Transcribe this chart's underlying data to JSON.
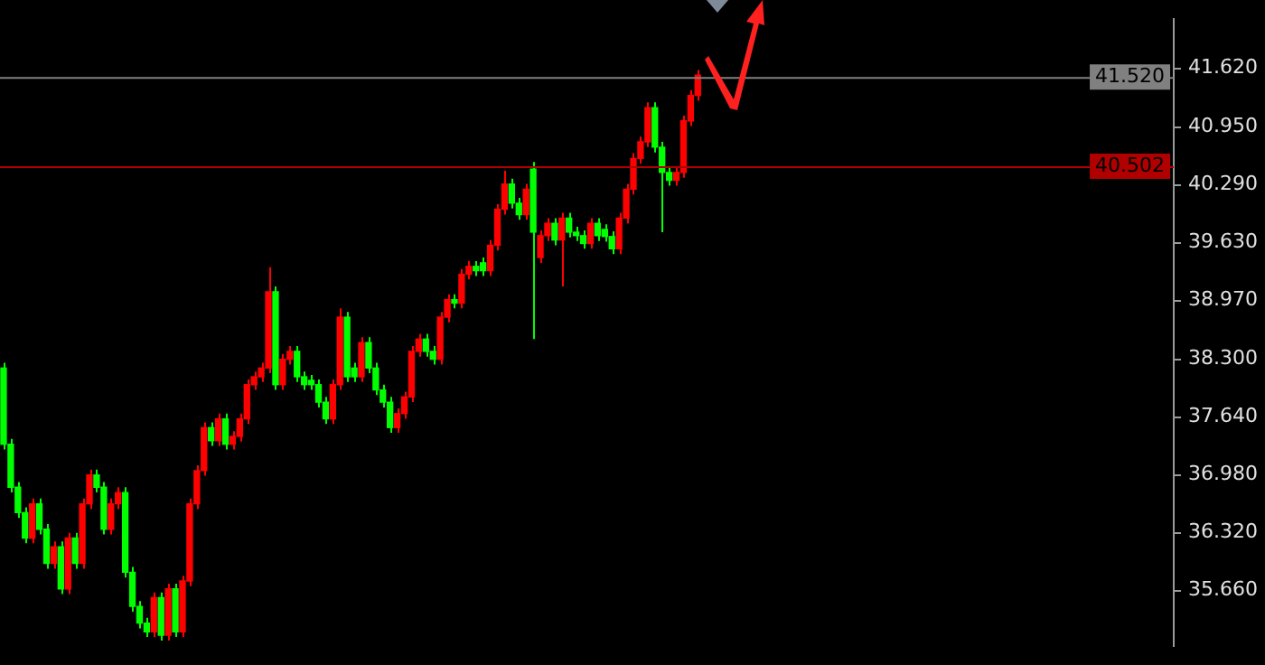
{
  "chart_data": {
    "type": "candlestick",
    "categories": [
      null,
      null,
      null,
      null,
      null,
      null,
      null,
      null,
      null,
      null,
      null,
      null,
      null,
      null,
      null,
      null,
      null,
      null,
      null,
      null,
      null,
      null,
      null,
      null,
      null,
      null,
      null,
      null,
      null,
      null,
      null,
      null,
      null,
      null,
      null,
      null,
      null,
      null,
      null,
      null,
      null,
      null,
      null,
      null,
      null,
      null,
      null,
      null,
      null,
      null,
      null,
      null,
      null,
      null,
      null,
      null,
      null,
      null,
      null,
      null,
      null,
      null,
      null,
      null,
      null,
      null,
      null,
      null,
      null,
      null,
      null,
      null,
      null,
      null,
      null,
      null,
      null,
      null,
      null,
      null,
      null,
      null,
      null,
      null,
      null,
      null,
      null,
      null,
      null,
      null,
      null,
      null,
      null,
      null,
      null,
      null,
      null,
      null,
      null,
      null,
      null,
      null,
      null,
      null,
      null,
      null,
      null,
      null,
      null,
      null,
      null,
      null,
      null,
      null,
      null,
      null,
      null,
      null,
      null,
      null,
      null,
      null,
      null,
      null,
      null,
      null,
      null,
      null,
      null,
      null,
      null,
      null,
      null,
      null,
      null,
      null,
      null,
      null,
      null,
      null,
      null,
      null,
      null,
      null,
      null,
      null,
      null,
      null,
      null,
      null,
      null,
      null,
      null,
      null,
      null,
      null,
      null,
      null,
      null,
      null,
      null,
      null,
      null,
      null
    ],
    "ohlc": [
      [
        38.2,
        38.26,
        37.27,
        37.33
      ],
      [
        37.33,
        37.39,
        36.78,
        36.84
      ],
      [
        36.84,
        36.9,
        36.49,
        36.55
      ],
      [
        36.55,
        36.61,
        36.2,
        36.26
      ],
      [
        36.26,
        36.71,
        36.2,
        36.65
      ],
      [
        36.65,
        36.71,
        36.3,
        36.36
      ],
      [
        36.36,
        36.42,
        35.91,
        35.97
      ],
      [
        35.97,
        36.22,
        35.91,
        36.16
      ],
      [
        36.16,
        36.22,
        35.62,
        35.68
      ],
      [
        35.68,
        36.32,
        35.62,
        36.26
      ],
      [
        36.26,
        36.32,
        35.91,
        35.97
      ],
      [
        35.97,
        36.71,
        35.91,
        36.65
      ],
      [
        36.65,
        37.04,
        36.59,
        36.98
      ],
      [
        36.98,
        37.04,
        36.78,
        36.84
      ],
      [
        36.84,
        36.9,
        36.3,
        36.36
      ],
      [
        36.36,
        36.71,
        36.3,
        36.65
      ],
      [
        36.65,
        36.84,
        36.59,
        36.78
      ],
      [
        36.78,
        36.84,
        35.81,
        35.87
      ],
      [
        35.87,
        35.93,
        35.42,
        35.48
      ],
      [
        35.48,
        35.54,
        35.23,
        35.29
      ],
      [
        35.29,
        35.35,
        35.13,
        35.19
      ],
      [
        35.19,
        35.64,
        35.13,
        35.58
      ],
      [
        35.58,
        35.64,
        35.09,
        35.15
      ],
      [
        35.15,
        35.74,
        35.09,
        35.68
      ],
      [
        35.68,
        35.74,
        35.13,
        35.19
      ],
      [
        35.19,
        35.83,
        35.13,
        35.77
      ],
      [
        35.77,
        36.71,
        35.71,
        36.65
      ],
      [
        36.65,
        37.09,
        36.59,
        37.03
      ],
      [
        37.03,
        37.58,
        36.97,
        37.52
      ],
      [
        37.52,
        37.58,
        37.31,
        37.37
      ],
      [
        37.37,
        37.68,
        37.31,
        37.62
      ],
      [
        37.62,
        37.68,
        37.27,
        37.33
      ],
      [
        37.33,
        37.48,
        37.27,
        37.42
      ],
      [
        37.42,
        37.68,
        37.36,
        37.62
      ],
      [
        37.62,
        38.07,
        37.56,
        38.01
      ],
      [
        38.01,
        38.16,
        37.95,
        38.1
      ],
      [
        38.1,
        38.26,
        38.04,
        38.2
      ],
      [
        38.2,
        39.35,
        38.14,
        39.07
      ],
      [
        39.07,
        39.13,
        37.95,
        38.01
      ],
      [
        38.01,
        38.36,
        37.95,
        38.3
      ],
      [
        38.3,
        38.45,
        38.24,
        38.39
      ],
      [
        38.39,
        38.45,
        38.04,
        38.1
      ],
      [
        38.1,
        38.16,
        37.95,
        38.01
      ],
      [
        38.06,
        38.12,
        37.95,
        38.01
      ],
      [
        38.01,
        38.07,
        37.75,
        37.81
      ],
      [
        37.81,
        37.87,
        37.56,
        37.62
      ],
      [
        37.62,
        38.07,
        37.56,
        38.01
      ],
      [
        38.01,
        38.88,
        37.95,
        38.78
      ],
      [
        38.78,
        38.84,
        38.04,
        38.1
      ],
      [
        38.2,
        38.26,
        38.04,
        38.1
      ],
      [
        38.1,
        38.55,
        38.04,
        38.49
      ],
      [
        38.49,
        38.55,
        38.14,
        38.2
      ],
      [
        38.2,
        38.26,
        37.89,
        37.95
      ],
      [
        37.95,
        38.01,
        37.75,
        37.81
      ],
      [
        37.81,
        37.87,
        37.46,
        37.52
      ],
      [
        37.52,
        37.74,
        37.46,
        37.68
      ],
      [
        37.68,
        37.93,
        37.62,
        37.87
      ],
      [
        37.87,
        38.45,
        37.81,
        38.39
      ],
      [
        38.39,
        38.59,
        38.33,
        38.53
      ],
      [
        38.53,
        38.59,
        38.33,
        38.39
      ],
      [
        38.39,
        38.45,
        38.24,
        38.3
      ],
      [
        38.3,
        38.84,
        38.24,
        38.78
      ],
      [
        38.78,
        39.04,
        38.72,
        38.98
      ],
      [
        38.98,
        39.04,
        38.88,
        38.94
      ],
      [
        38.94,
        39.33,
        38.88,
        39.27
      ],
      [
        39.27,
        39.42,
        39.21,
        39.36
      ],
      [
        39.36,
        39.42,
        39.25,
        39.31
      ],
      [
        39.4,
        39.46,
        39.25,
        39.31
      ],
      [
        39.31,
        39.66,
        39.25,
        39.6
      ],
      [
        39.6,
        40.07,
        39.54,
        40.01
      ],
      [
        40.01,
        40.45,
        39.95,
        40.3
      ],
      [
        40.3,
        40.36,
        40.02,
        40.08
      ],
      [
        40.08,
        40.14,
        39.89,
        39.95
      ],
      [
        39.95,
        40.3,
        39.89,
        40.24
      ],
      [
        40.47,
        40.55,
        38.53,
        39.75
      ],
      [
        39.46,
        39.77,
        39.4,
        39.71
      ],
      [
        39.71,
        39.91,
        39.65,
        39.85
      ],
      [
        39.85,
        39.91,
        39.6,
        39.66
      ],
      [
        39.66,
        39.97,
        39.13,
        39.91
      ],
      [
        39.91,
        39.97,
        39.69,
        39.75
      ],
      [
        39.75,
        39.81,
        39.65,
        39.71
      ],
      [
        39.71,
        39.77,
        39.56,
        39.62
      ],
      [
        39.62,
        39.91,
        39.56,
        39.85
      ],
      [
        39.85,
        39.91,
        39.65,
        39.71
      ],
      [
        39.78,
        39.84,
        39.64,
        39.7
      ],
      [
        39.7,
        39.76,
        39.5,
        39.56
      ],
      [
        39.56,
        39.97,
        39.5,
        39.91
      ],
      [
        39.91,
        40.3,
        39.85,
        40.24
      ],
      [
        40.24,
        40.65,
        40.18,
        40.59
      ],
      [
        40.59,
        40.84,
        40.53,
        40.78
      ],
      [
        40.78,
        41.23,
        40.72,
        41.17
      ],
      [
        41.17,
        41.23,
        40.66,
        40.72
      ],
      [
        40.72,
        40.78,
        39.75,
        40.43
      ],
      [
        40.43,
        40.49,
        40.28,
        40.34
      ],
      [
        40.34,
        40.49,
        40.28,
        40.43
      ],
      [
        40.43,
        41.08,
        40.37,
        41.02
      ],
      [
        41.02,
        41.37,
        40.96,
        41.31
      ],
      [
        41.31,
        41.6,
        41.25,
        41.54
      ],
      null,
      null,
      null,
      null,
      null,
      null,
      null,
      null,
      null,
      null,
      null,
      null,
      null,
      null,
      null,
      null,
      null,
      null,
      null,
      null,
      null,
      null,
      null,
      null,
      null,
      null,
      null,
      null,
      null,
      null,
      null,
      null,
      null,
      null,
      null,
      null,
      null,
      null,
      null,
      null,
      null,
      null,
      null,
      null,
      null,
      null,
      null,
      null,
      null,
      null,
      null,
      null,
      null,
      null,
      null,
      null,
      null,
      null,
      null,
      null,
      null,
      null,
      null,
      null,
      null,
      null
    ],
    "colors": [
      "#00ff00",
      "#00ff00",
      "#00ff00",
      "#00ff00",
      "#ff0000",
      "#00ff00",
      "#00ff00",
      "#ff0000",
      "#00ff00",
      "#ff0000",
      "#00ff00",
      "#ff0000",
      "#ff0000",
      "#00ff00",
      "#00ff00",
      "#ff0000",
      "#ff0000",
      "#00ff00",
      "#00ff00",
      "#00ff00",
      "#00ff00",
      "#ff0000",
      "#00ff00",
      "#ff0000",
      "#00ff00",
      "#ff0000",
      "#ff0000",
      "#ff0000",
      "#ff0000",
      "#00ff00",
      "#ff0000",
      "#00ff00",
      "#ff0000",
      "#ff0000",
      "#ff0000",
      "#ff0000",
      "#ff0000",
      "#ff0000",
      "#00ff00",
      "#ff0000",
      "#ff0000",
      "#00ff00",
      "#00ff00",
      "#00ff00",
      "#00ff00",
      "#00ff00",
      "#ff0000",
      "#ff0000",
      "#00ff00",
      "#00ff00",
      "#ff0000",
      "#00ff00",
      "#00ff00",
      "#00ff00",
      "#00ff00",
      "#ff0000",
      "#ff0000",
      "#ff0000",
      "#ff0000",
      "#00ff00",
      "#00ff00",
      "#ff0000",
      "#ff0000",
      "#00ff00",
      "#ff0000",
      "#ff0000",
      "#00ff00",
      "#00ff00",
      "#ff0000",
      "#ff0000",
      "#ff0000",
      "#00ff00",
      "#00ff00",
      "#ff0000",
      "#00ff00",
      "#ff0000",
      "#ff0000",
      "#00ff00",
      "#ff0000",
      "#00ff00",
      "#00ff00",
      "#00ff00",
      "#ff0000",
      "#00ff00",
      "#00ff00",
      "#00ff00",
      "#ff0000",
      "#ff0000",
      "#ff0000",
      "#ff0000",
      "#ff0000",
      "#00ff00",
      "#00ff00",
      "#00ff00",
      "#ff0000",
      "#ff0000",
      "#ff0000",
      "#ff0000",
      null,
      null,
      null,
      null,
      null,
      null,
      null,
      null,
      null,
      null,
      null,
      null,
      null,
      null,
      null,
      null,
      null,
      null,
      null,
      null,
      null,
      null,
      null,
      null,
      null,
      null,
      null,
      null,
      null,
      null,
      null,
      null,
      null,
      null,
      null,
      null,
      null,
      null,
      null,
      null,
      null,
      null,
      null,
      null,
      null,
      null,
      null,
      null,
      null,
      null,
      null,
      null,
      null,
      null,
      null,
      null,
      null,
      null,
      null,
      null,
      null,
      null,
      null,
      null,
      null,
      null
    ],
    "ylim": [
      35.03,
      42.18
    ],
    "yticks": [
      {
        "value": 35.66,
        "label": "35.660"
      },
      {
        "value": 36.32,
        "label": "36.320"
      },
      {
        "value": 36.98,
        "label": "36.980"
      },
      {
        "value": 37.64,
        "label": "37.640"
      },
      {
        "value": 38.3,
        "label": "38.300"
      },
      {
        "value": 38.97,
        "label": "38.970"
      },
      {
        "value": 39.63,
        "label": "39.630"
      },
      {
        "value": 40.29,
        "label": "40.290"
      },
      {
        "value": 40.95,
        "label": "40.950"
      },
      {
        "value": 41.62,
        "label": "41.620"
      }
    ],
    "ref_lines": [
      {
        "axis": "y",
        "value": 41.52,
        "label": "41.520",
        "color": "#808080"
      },
      {
        "axis": "y",
        "value": 40.502,
        "label": "40.502",
        "color": "#b00000"
      }
    ],
    "tick_labels": "y",
    "grid": false,
    "legend": false
  }
}
